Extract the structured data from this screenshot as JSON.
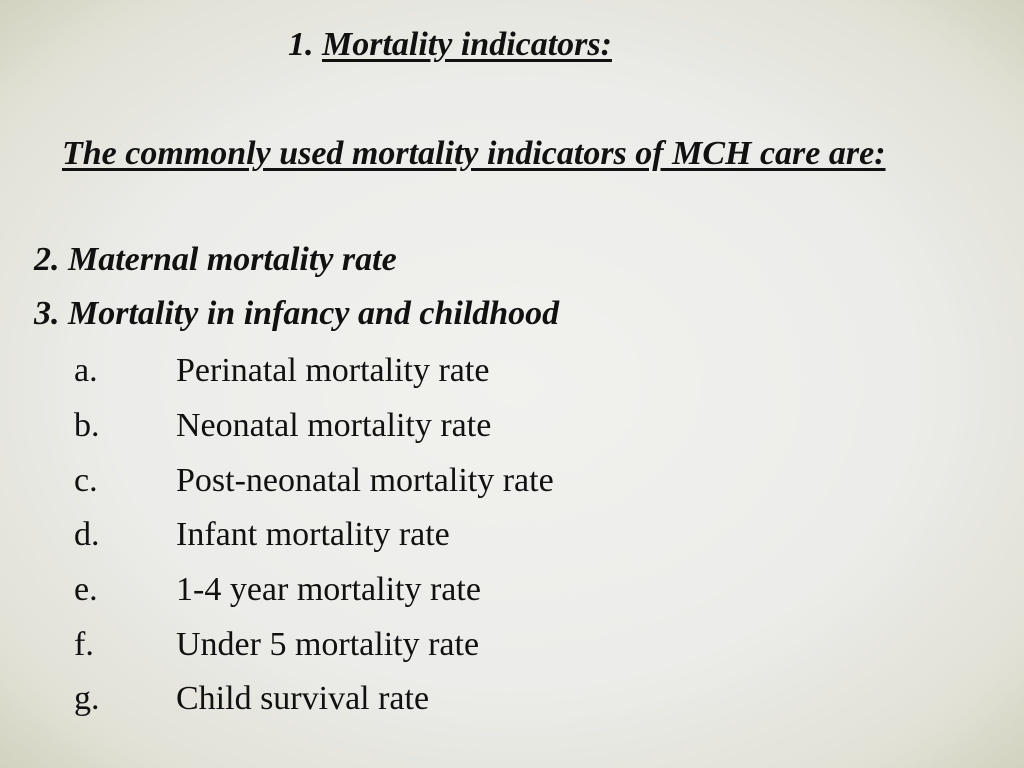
{
  "title": {
    "number": "1.",
    "text": "Mortality indicators:"
  },
  "intro": "The commonly used mortality indicators of MCH care are:",
  "numbered_items": [
    {
      "number": "2.",
      "text": "Maternal mortality rate"
    },
    {
      "number": "3.",
      "text": "Mortality in infancy and childhood"
    }
  ],
  "sub_items": [
    {
      "letter": "a.",
      "text": "Perinatal mortality rate"
    },
    {
      "letter": "b.",
      "text": "Neonatal mortality rate"
    },
    {
      "letter": "c.",
      "text": "Post-neonatal mortality rate"
    },
    {
      "letter": "d.",
      "text": "Infant mortality rate"
    },
    {
      "letter": "e.",
      "text": "1-4 year mortality rate"
    },
    {
      "letter": "f.",
      "text": "Under 5 mortality rate"
    },
    {
      "letter": "g.",
      "text": "Child survival rate"
    }
  ]
}
